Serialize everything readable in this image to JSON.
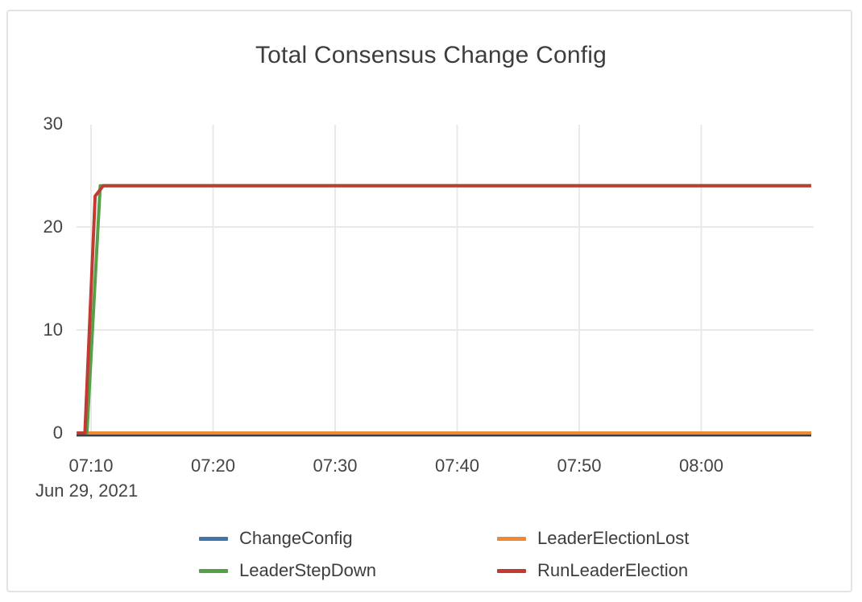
{
  "chart_data": {
    "type": "line",
    "title": "Total Consensus Change Config",
    "x_axis": {
      "ticks": [
        "07:10",
        "07:20",
        "07:30",
        "07:40",
        "07:50",
        "08:00"
      ],
      "date_label": "Jun 29, 2021"
    },
    "y_axis": {
      "ticks": [
        0,
        10,
        20,
        30
      ],
      "range": [
        0,
        30
      ]
    },
    "grid": true,
    "legend_position": "bottom-center",
    "zero_line_color": "#3d3d3d",
    "grid_color": "#e9e9e9",
    "series": [
      {
        "name": "ChangeConfig",
        "color": "#3e76ab",
        "points": [
          [
            "07:08:50",
            0
          ],
          [
            "08:09:00",
            0
          ]
        ]
      },
      {
        "name": "LeaderElectionLost",
        "color": "#ee8a35",
        "points": [
          [
            "07:08:50",
            0
          ],
          [
            "08:09:00",
            0
          ]
        ]
      },
      {
        "name": "LeaderStepDown",
        "color": "#55a049",
        "points": [
          [
            "07:08:50",
            0
          ],
          [
            "07:09:40",
            0
          ],
          [
            "07:10:45",
            24
          ],
          [
            "08:09:00",
            24
          ]
        ]
      },
      {
        "name": "RunLeaderElection",
        "color": "#c23b33",
        "points": [
          [
            "07:08:50",
            0
          ],
          [
            "07:09:30",
            0
          ],
          [
            "07:10:20",
            23
          ],
          [
            "07:11:00",
            24
          ],
          [
            "08:09:00",
            24
          ]
        ]
      }
    ]
  }
}
